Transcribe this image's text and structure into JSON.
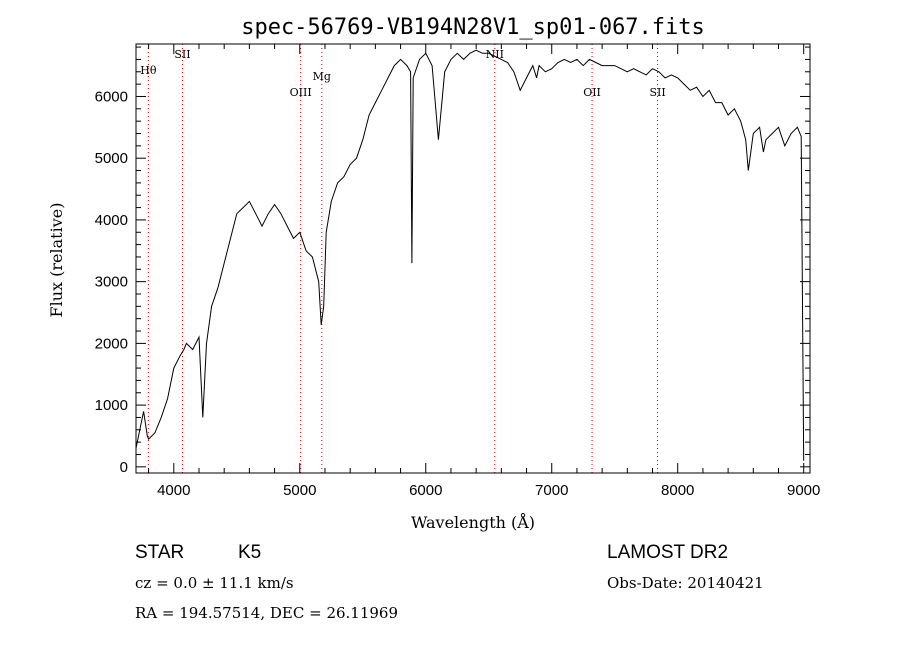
{
  "chart_data": {
    "type": "line",
    "title": "spec-56769-VB194N28V1_sp01-067.fits",
    "xlabel": "Wavelength (Å)",
    "ylabel": "Flux (relative)",
    "xlim": [
      3700,
      9050
    ],
    "ylim": [
      -100,
      6850
    ],
    "xticks": [
      4000,
      5000,
      6000,
      7000,
      8000,
      9000
    ],
    "yticks": [
      0,
      1000,
      2000,
      3000,
      4000,
      5000,
      6000
    ],
    "grid": false,
    "series": [
      {
        "x": [
          3700,
          3730,
          3760,
          3790,
          3800,
          3850,
          3900,
          3950,
          3980,
          4000,
          4050,
          4080,
          4100,
          4150,
          4200,
          4230,
          4260,
          4300,
          4350,
          4400,
          4450,
          4500,
          4550,
          4600,
          4650,
          4700,
          4750,
          4800,
          4850,
          4900,
          4950,
          5000,
          5050,
          5100,
          5150,
          5170,
          5190,
          5210,
          5250,
          5300,
          5350,
          5400,
          5450,
          5500,
          5550,
          5600,
          5650,
          5700,
          5750,
          5800,
          5850,
          5880,
          5890,
          5900,
          5950,
          6000,
          6050,
          6100,
          6150,
          6200,
          6250,
          6300,
          6350,
          6400,
          6450,
          6500,
          6550,
          6600,
          6650,
          6700,
          6750,
          6800,
          6850,
          6880,
          6900,
          6950,
          7000,
          7050,
          7100,
          7150,
          7200,
          7250,
          7300,
          7350,
          7400,
          7450,
          7500,
          7550,
          7600,
          7650,
          7700,
          7750,
          7800,
          7850,
          7900,
          7950,
          8000,
          8050,
          8100,
          8150,
          8200,
          8250,
          8300,
          8350,
          8400,
          8450,
          8500,
          8540,
          8560,
          8600,
          8650,
          8680,
          8700,
          8750,
          8800,
          8850,
          8900,
          8950,
          8980,
          9000
        ],
        "y": [
          300,
          600,
          900,
          500,
          450,
          550,
          800,
          1100,
          1400,
          1600,
          1800,
          1900,
          2000,
          1900,
          2100,
          800,
          2000,
          2600,
          2900,
          3300,
          3700,
          4100,
          4200,
          4300,
          4100,
          3900,
          4100,
          4250,
          4100,
          3900,
          3700,
          3800,
          3500,
          3400,
          3000,
          2300,
          2600,
          3800,
          4300,
          4600,
          4700,
          4900,
          5000,
          5300,
          5700,
          5900,
          6100,
          6300,
          6500,
          6600,
          6500,
          6400,
          3300,
          6300,
          6600,
          6700,
          6500,
          5300,
          6400,
          6600,
          6700,
          6600,
          6700,
          6750,
          6700,
          6700,
          6650,
          6600,
          6550,
          6400,
          6100,
          6300,
          6500,
          6300,
          6500,
          6400,
          6450,
          6550,
          6600,
          6550,
          6600,
          6500,
          6600,
          6550,
          6500,
          6500,
          6500,
          6450,
          6400,
          6450,
          6400,
          6350,
          6450,
          6400,
          6300,
          6350,
          6300,
          6200,
          6100,
          6150,
          6000,
          6100,
          5900,
          5900,
          5700,
          5800,
          5600,
          5300,
          4800,
          5400,
          5500,
          5100,
          5300,
          5400,
          5500,
          5200,
          5400,
          5500,
          5350,
          100
        ],
        "color": "#000000"
      }
    ],
    "line_markers": [
      {
        "label": "Hθ",
        "x": 3798
      },
      {
        "label": "SII",
        "x": 4069
      },
      {
        "label": "OIII",
        "x": 5007
      },
      {
        "label": "Mg",
        "x": 5175
      },
      {
        "label": "NII",
        "x": 6548
      },
      {
        "label": "OII",
        "x": 7320
      },
      {
        "label": "SII",
        "x": 7840
      }
    ],
    "marker_color": "#cc0000"
  },
  "info": {
    "star_type": "STAR",
    "subclass": "K5",
    "survey": "LAMOST DR2",
    "cz": "cz = 0.0 ± 11.1 km/s",
    "obs_date": "Obs-Date: 20140421",
    "coords": "RA = 194.57514, DEC =  26.11969"
  }
}
